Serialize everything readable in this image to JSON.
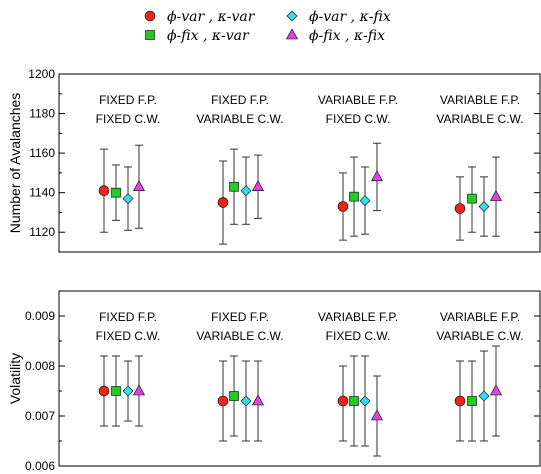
{
  "legend": [
    {
      "label": "ϕ-var , κ-var",
      "marker": "circle",
      "color": "#e8261c"
    },
    {
      "label": "ϕ-fix , κ-var",
      "marker": "square",
      "color": "#22cc22"
    },
    {
      "label": "ϕ-var , κ-fix",
      "marker": "diamond",
      "color": "#33ddee"
    },
    {
      "label": "ϕ-fix , κ-fix",
      "marker": "triangle",
      "color": "#dd44dd"
    }
  ],
  "chart_data": [
    {
      "type": "scatter",
      "ylabel": "Number of Avalanches",
      "ylim": [
        1110,
        1200
      ],
      "yticks": [
        1120,
        1140,
        1160,
        1180,
        1200
      ],
      "error_bars": true,
      "groups": [
        {
          "annotation": [
            "FIXED F.P.",
            "FIXED C.W."
          ]
        },
        {
          "annotation": [
            "FIXED F.P.",
            "VARIABLE C.W."
          ]
        },
        {
          "annotation": [
            "VARIABLE F.P.",
            "FIXED C.W."
          ]
        },
        {
          "annotation": [
            "VARIABLE F.P.",
            "VARIABLE C.W."
          ]
        }
      ],
      "series": [
        {
          "values": [
            1141,
            1135,
            1133,
            1132
          ],
          "low": [
            1120,
            1114,
            1116,
            1116
          ],
          "high": [
            1162,
            1156,
            1150,
            1148
          ]
        },
        {
          "values": [
            1140,
            1143,
            1138,
            1137
          ],
          "low": [
            1126,
            1124,
            1118,
            1120
          ],
          "high": [
            1154,
            1162,
            1158,
            1153
          ]
        },
        {
          "values": [
            1137,
            1141,
            1136,
            1133
          ],
          "low": [
            1121,
            1124,
            1119,
            1118
          ],
          "high": [
            1153,
            1158,
            1153,
            1148
          ]
        },
        {
          "values": [
            1143,
            1143,
            1148,
            1138
          ],
          "low": [
            1122,
            1127,
            1131,
            1118
          ],
          "high": [
            1164,
            1159,
            1165,
            1158
          ]
        }
      ]
    },
    {
      "type": "scatter",
      "ylabel": "Volatility",
      "ylim": [
        0.006,
        0.0095
      ],
      "yticks": [
        0.006,
        0.007,
        0.008,
        0.009
      ],
      "ytick_labels": [
        "0.006",
        "0.007",
        "0.008",
        "0.009"
      ],
      "error_bars": true,
      "groups": [
        {
          "annotation": [
            "FIXED F.P.",
            "FIXED C.W."
          ]
        },
        {
          "annotation": [
            "FIXED F.P.",
            "VARIABLE C.W."
          ]
        },
        {
          "annotation": [
            "VARIABLE F.P.",
            "FIXED C.W."
          ]
        },
        {
          "annotation": [
            "VARIABLE F.P.",
            "VARIABLE C.W."
          ]
        }
      ],
      "series": [
        {
          "values": [
            0.0075,
            0.0073,
            0.0073,
            0.0073
          ],
          "low": [
            0.0068,
            0.0065,
            0.0065,
            0.0065
          ],
          "high": [
            0.0082,
            0.0081,
            0.008,
            0.0081
          ]
        },
        {
          "values": [
            0.0075,
            0.0074,
            0.0073,
            0.0073
          ],
          "low": [
            0.0068,
            0.0066,
            0.0064,
            0.0065
          ],
          "high": [
            0.0082,
            0.0082,
            0.0082,
            0.0081
          ]
        },
        {
          "values": [
            0.0075,
            0.0073,
            0.0073,
            0.0074
          ],
          "low": [
            0.0069,
            0.0065,
            0.0064,
            0.0065
          ],
          "high": [
            0.0081,
            0.0081,
            0.0082,
            0.0083
          ]
        },
        {
          "values": [
            0.0075,
            0.0073,
            0.007,
            0.0075
          ],
          "low": [
            0.0068,
            0.0065,
            0.0062,
            0.0066
          ],
          "high": [
            0.0082,
            0.0081,
            0.0078,
            0.0084
          ]
        }
      ]
    }
  ]
}
